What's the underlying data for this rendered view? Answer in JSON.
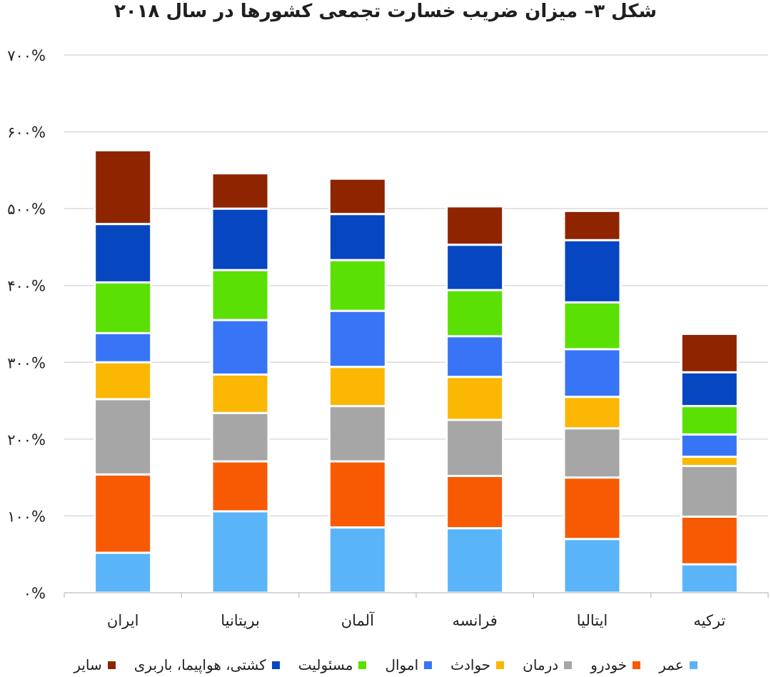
{
  "chart_data": {
    "type": "bar",
    "stacked": true,
    "title": "شکل ۳– میزان ضریب خسارت تجمعی کشورها در سال ۲۰۱۸",
    "xlabel": "",
    "ylabel": "",
    "ylim": [
      0,
      700
    ],
    "yticks": [
      {
        "value": 0,
        "label": "۰%"
      },
      {
        "value": 100,
        "label": "۱۰۰%"
      },
      {
        "value": 200,
        "label": "۲۰۰%"
      },
      {
        "value": 300,
        "label": "۳۰۰%"
      },
      {
        "value": 400,
        "label": "۴۰۰%"
      },
      {
        "value": 500,
        "label": "۵۰۰%"
      },
      {
        "value": 600,
        "label": "۶۰۰%"
      },
      {
        "value": 700,
        "label": "۷۰۰%"
      }
    ],
    "grid": true,
    "legend_position": "bottom",
    "categories": [
      "ایران",
      "بریتانیا",
      "آلمان",
      "فرانسه",
      "ایتالیا",
      "ترکیه"
    ],
    "series": [
      {
        "name": "عمر",
        "color": "#5ab4f8",
        "values": [
          52,
          106,
          85,
          84,
          70,
          37
        ]
      },
      {
        "name": "خودرو",
        "color": "#f85a04",
        "values": [
          102,
          65,
          86,
          68,
          80,
          62
        ]
      },
      {
        "name": "درمان",
        "color": "#a6a6a6",
        "values": [
          98,
          63,
          72,
          73,
          64,
          66
        ]
      },
      {
        "name": "حوادث",
        "color": "#fbb704",
        "values": [
          48,
          50,
          51,
          56,
          41,
          12
        ]
      },
      {
        "name": "اموال",
        "color": "#3874f6",
        "values": [
          38,
          71,
          73,
          53,
          62,
          29
        ]
      },
      {
        "name": "مسئولیت",
        "color": "#5ae002",
        "values": [
          66,
          65,
          66,
          60,
          61,
          37
        ]
      },
      {
        "name": "کشتی، هواپیما، باربری",
        "color": "#0746c1",
        "values": [
          76,
          80,
          60,
          59,
          81,
          44
        ]
      },
      {
        "name": "سایر",
        "color": "#8e2400",
        "values": [
          96,
          46,
          46,
          50,
          38,
          50
        ]
      }
    ]
  }
}
